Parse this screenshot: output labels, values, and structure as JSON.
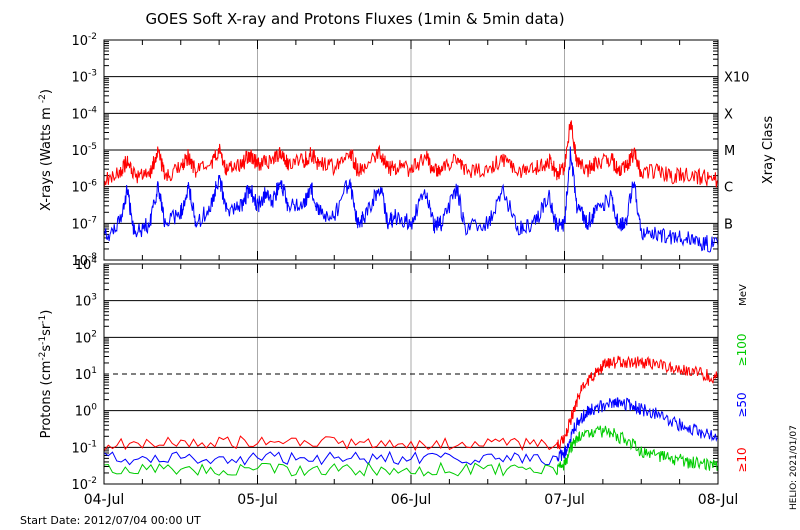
{
  "title": "GOES Soft X-ray and Protons Fluxes   (1min & 5min data)",
  "footer": {
    "start_date": "Start Date: 2012/07/04 00:00 UT",
    "credit": "HELIO: 2021/01/07"
  },
  "chart_data": [
    {
      "type": "line",
      "panel": "xray",
      "ylabel_main": "X-rays (Watts m",
      "ylabel_sup": "-2",
      "ylabel_end": ")",
      "y_scale": "log",
      "ylim": [
        1e-08,
        0.01
      ],
      "y_tick_bases": [
        "10",
        "10",
        "10",
        "10",
        "10",
        "10",
        "10"
      ],
      "y_tick_exps": [
        "-8",
        "-7",
        "-6",
        "-5",
        "-4",
        "-3",
        "-2"
      ],
      "y_tick_values": [
        1e-08,
        1e-07,
        1e-06,
        1e-05,
        0.0001,
        0.001,
        0.01
      ],
      "right_axis_title": "Xray Class",
      "class_labels": [
        "B",
        "C",
        "M",
        "X",
        "X10"
      ],
      "class_levels": [
        1e-07,
        1e-06,
        1e-05,
        0.0001,
        0.001
      ],
      "solid_grid": [
        1e-07,
        1e-06,
        1e-05,
        0.0001,
        0.001
      ],
      "xlim_days": [
        0,
        4
      ],
      "series": [
        {
          "channel": "long",
          "color": "#ff0000",
          "points": [
            [
              0.0,
              1.5e-06
            ],
            [
              0.1,
              2.2e-06
            ],
            [
              0.15,
              5e-06
            ],
            [
              0.2,
              1.8e-06
            ],
            [
              0.3,
              2.5e-06
            ],
            [
              0.35,
              8e-06
            ],
            [
              0.4,
              2e-06
            ],
            [
              0.5,
              3e-06
            ],
            [
              0.55,
              7e-06
            ],
            [
              0.6,
              2.5e-06
            ],
            [
              0.7,
              4e-06
            ],
            [
              0.75,
              1e-05
            ],
            [
              0.8,
              3e-06
            ],
            [
              0.9,
              4e-06
            ],
            [
              0.95,
              8e-06
            ],
            [
              1.0,
              4e-06
            ],
            [
              1.1,
              5e-06
            ],
            [
              1.15,
              9e-06
            ],
            [
              1.2,
              4e-06
            ],
            [
              1.3,
              5e-06
            ],
            [
              1.35,
              8e-06
            ],
            [
              1.4,
              4e-06
            ],
            [
              1.5,
              3.5e-06
            ],
            [
              1.6,
              1e-05
            ],
            [
              1.65,
              3e-06
            ],
            [
              1.7,
              3.5e-06
            ],
            [
              1.8,
              8e-06
            ],
            [
              1.85,
              3e-06
            ],
            [
              1.9,
              3.5e-06
            ],
            [
              2.0,
              3e-06
            ],
            [
              2.1,
              6e-06
            ],
            [
              2.15,
              2.5e-06
            ],
            [
              2.2,
              3e-06
            ],
            [
              2.3,
              7e-06
            ],
            [
              2.35,
              2.5e-06
            ],
            [
              2.5,
              3e-06
            ],
            [
              2.6,
              6e-06
            ],
            [
              2.7,
              2.5e-06
            ],
            [
              2.8,
              3e-06
            ],
            [
              2.9,
              5e-06
            ],
            [
              2.95,
              2.5e-06
            ],
            [
              3.0,
              3e-06
            ],
            [
              3.04,
              6e-05
            ],
            [
              3.08,
              5e-06
            ],
            [
              3.15,
              3e-06
            ],
            [
              3.2,
              4e-06
            ],
            [
              3.3,
              6e-06
            ],
            [
              3.35,
              3e-06
            ],
            [
              3.4,
              3.5e-06
            ],
            [
              3.45,
              8e-06
            ],
            [
              3.5,
              2.5e-06
            ],
            [
              3.6,
              2.5e-06
            ],
            [
              3.7,
              2e-06
            ],
            [
              3.8,
              2e-06
            ],
            [
              3.9,
              1.8e-06
            ],
            [
              4.0,
              1.5e-06
            ]
          ]
        },
        {
          "channel": "short",
          "color": "#0000ff",
          "points": [
            [
              0.0,
              4e-08
            ],
            [
              0.1,
              1e-07
            ],
            [
              0.15,
              8e-07
            ],
            [
              0.2,
              5e-08
            ],
            [
              0.3,
              1e-07
            ],
            [
              0.35,
              1e-06
            ],
            [
              0.4,
              1e-07
            ],
            [
              0.5,
              2e-07
            ],
            [
              0.55,
              1e-06
            ],
            [
              0.6,
              1e-07
            ],
            [
              0.7,
              3e-07
            ],
            [
              0.75,
              2e-06
            ],
            [
              0.8,
              2e-07
            ],
            [
              0.9,
              3e-07
            ],
            [
              0.95,
              1e-06
            ],
            [
              1.0,
              3e-07
            ],
            [
              1.05,
              6e-07
            ],
            [
              1.1,
              4e-07
            ],
            [
              1.15,
              1.5e-06
            ],
            [
              1.2,
              3e-07
            ],
            [
              1.3,
              3e-07
            ],
            [
              1.35,
              1e-06
            ],
            [
              1.4,
              2e-07
            ],
            [
              1.5,
              1.5e-07
            ],
            [
              1.6,
              1.5e-06
            ],
            [
              1.65,
              1e-07
            ],
            [
              1.7,
              1.5e-07
            ],
            [
              1.8,
              1e-06
            ],
            [
              1.85,
              1e-07
            ],
            [
              1.9,
              1.5e-07
            ],
            [
              2.0,
              1e-07
            ],
            [
              2.1,
              8e-07
            ],
            [
              2.15,
              8e-08
            ],
            [
              2.2,
              1e-07
            ],
            [
              2.3,
              9e-07
            ],
            [
              2.35,
              8e-08
            ],
            [
              2.5,
              1e-07
            ],
            [
              2.6,
              7e-07
            ],
            [
              2.7,
              8e-08
            ],
            [
              2.8,
              1e-07
            ],
            [
              2.9,
              5e-07
            ],
            [
              2.95,
              8e-08
            ],
            [
              3.0,
              1e-07
            ],
            [
              3.04,
              1e-05
            ],
            [
              3.08,
              3e-07
            ],
            [
              3.15,
              1e-07
            ],
            [
              3.2,
              2e-07
            ],
            [
              3.3,
              5e-07
            ],
            [
              3.35,
              1e-07
            ],
            [
              3.4,
              1e-07
            ],
            [
              3.45,
              1.5e-06
            ],
            [
              3.5,
              5e-08
            ],
            [
              3.6,
              5e-08
            ],
            [
              3.7,
              4e-08
            ],
            [
              3.8,
              4e-08
            ],
            [
              3.9,
              3e-08
            ],
            [
              4.0,
              2.5e-08
            ]
          ]
        }
      ]
    },
    {
      "type": "line",
      "panel": "protons",
      "ylabel_main": "Protons (cm",
      "ylabel_sup1": "-2",
      "ylabel_mid": "s",
      "ylabel_sup2": "-1",
      "ylabel_mid2": "sr",
      "ylabel_sup3": "-1",
      "ylabel_end": ")",
      "y_scale": "log",
      "ylim": [
        0.01,
        10000
      ],
      "y_tick_labels": [
        {
          "base": "10",
          "exp": "-2",
          "value": 0.01
        },
        {
          "base": "10",
          "exp": "-1",
          "value": 0.1
        },
        {
          "base": "10",
          "exp": "0",
          "value": 1
        },
        {
          "base": "10",
          "exp": "1",
          "value": 10
        },
        {
          "base": "10",
          "exp": "2",
          "value": 100
        },
        {
          "base": "10",
          "exp": "3",
          "value": 1000
        },
        {
          "base": "10",
          "exp": "4",
          "value": 10000
        }
      ],
      "solid_grid": [
        0.1,
        1,
        100,
        1000
      ],
      "dashed_grid": [
        10
      ],
      "unit_label": "MeV",
      "legend": [
        {
          "label": "≥100",
          "color": "#00cc00"
        },
        {
          "label": "≥50",
          "color": "#0000ff"
        },
        {
          "label": "≥10",
          "color": "#ff0000"
        }
      ],
      "xlim_days": [
        0,
        4
      ],
      "x_tick_labels": [
        "04-Jul",
        "05-Jul",
        "06-Jul",
        "07-Jul",
        "08-Jul"
      ],
      "x_tick_days": [
        0,
        1,
        2,
        3,
        4
      ],
      "series": [
        {
          "channel": ">=10 MeV",
          "color": "#ff0000",
          "points": [
            [
              0.0,
              0.12
            ],
            [
              0.5,
              0.13
            ],
            [
              1.0,
              0.14
            ],
            [
              1.5,
              0.13
            ],
            [
              2.0,
              0.12
            ],
            [
              2.5,
              0.12
            ],
            [
              2.95,
              0.12
            ],
            [
              3.0,
              0.15
            ],
            [
              3.05,
              0.8
            ],
            [
              3.1,
              3
            ],
            [
              3.15,
              6
            ],
            [
              3.2,
              10
            ],
            [
              3.25,
              18
            ],
            [
              3.3,
              20
            ],
            [
              3.4,
              22
            ],
            [
              3.5,
              20
            ],
            [
              3.6,
              18
            ],
            [
              3.7,
              15
            ],
            [
              3.8,
              12
            ],
            [
              3.9,
              10
            ],
            [
              4.0,
              8
            ]
          ]
        },
        {
          "channel": ">=50 MeV",
          "color": "#0000ff",
          "points": [
            [
              0.0,
              0.05
            ],
            [
              0.5,
              0.05
            ],
            [
              1.0,
              0.05
            ],
            [
              1.5,
              0.05
            ],
            [
              2.0,
              0.05
            ],
            [
              2.5,
              0.05
            ],
            [
              2.95,
              0.05
            ],
            [
              3.0,
              0.07
            ],
            [
              3.05,
              0.25
            ],
            [
              3.1,
              0.6
            ],
            [
              3.15,
              0.9
            ],
            [
              3.2,
              1.2
            ],
            [
              3.3,
              1.5
            ],
            [
              3.35,
              1.6
            ],
            [
              3.45,
              1.4
            ],
            [
              3.5,
              1.1
            ],
            [
              3.6,
              0.8
            ],
            [
              3.7,
              0.5
            ],
            [
              3.8,
              0.35
            ],
            [
              3.9,
              0.25
            ],
            [
              4.0,
              0.18
            ]
          ]
        },
        {
          "channel": ">=100 MeV",
          "color": "#00cc00",
          "points": [
            [
              0.0,
              0.025
            ],
            [
              0.5,
              0.025
            ],
            [
              1.0,
              0.025
            ],
            [
              1.5,
              0.025
            ],
            [
              2.0,
              0.025
            ],
            [
              2.5,
              0.025
            ],
            [
              2.95,
              0.025
            ],
            [
              3.0,
              0.035
            ],
            [
              3.05,
              0.12
            ],
            [
              3.1,
              0.2
            ],
            [
              3.2,
              0.28
            ],
            [
              3.3,
              0.26
            ],
            [
              3.4,
              0.15
            ],
            [
              3.5,
              0.08
            ],
            [
              3.6,
              0.06
            ],
            [
              3.7,
              0.05
            ],
            [
              3.8,
              0.04
            ],
            [
              3.9,
              0.035
            ],
            [
              4.0,
              0.03
            ]
          ]
        }
      ]
    }
  ]
}
